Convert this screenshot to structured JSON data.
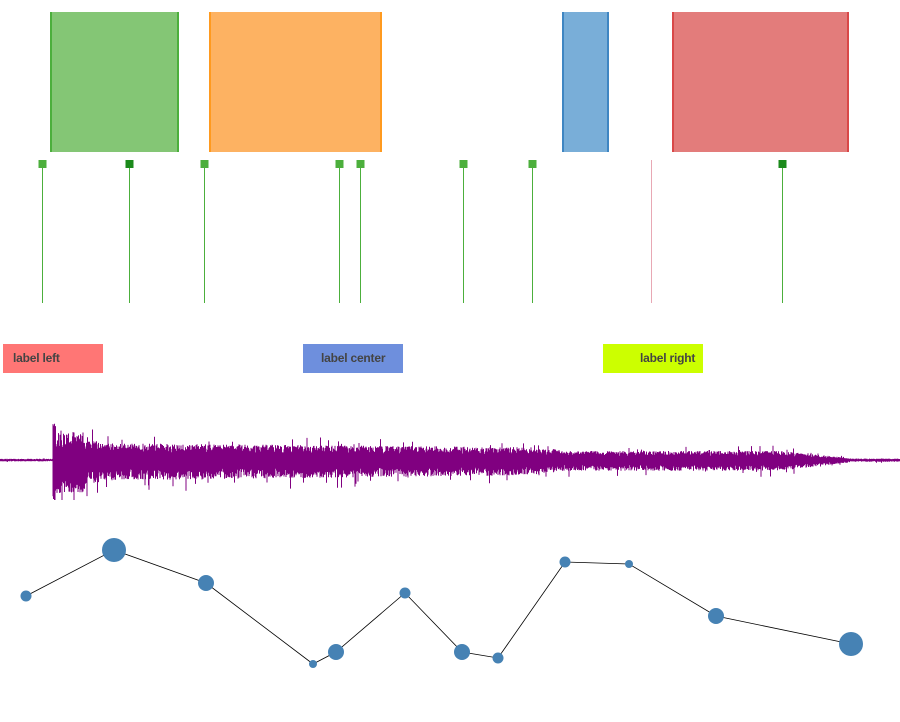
{
  "regions": [
    {
      "name": "green",
      "fill": "#84c675",
      "stroke": "#4caf3c"
    },
    {
      "name": "orange",
      "fill": "#fdb262",
      "stroke": "#ff9a1f"
    },
    {
      "name": "blue",
      "fill": "#79aed8",
      "stroke": "#3f86c2"
    },
    {
      "name": "red",
      "fill": "#e37c7b",
      "stroke": "#d94848"
    }
  ],
  "markers": [
    {
      "handle": "light"
    },
    {
      "handle": "dark"
    },
    {
      "handle": "light"
    },
    {
      "handle": "light"
    },
    {
      "handle": "light"
    },
    {
      "handle": "light"
    },
    {
      "handle": "light"
    },
    {
      "handle": "none"
    },
    {
      "handle": "dark"
    }
  ],
  "marker_colors": {
    "light": "#4caf3c",
    "dark": "#1b8a1b",
    "line": "#4caf3c",
    "pink_line": "#e8a8b4"
  },
  "labels": {
    "left": {
      "text": "label left",
      "bg": "#ff7675"
    },
    "center": {
      "text": "label center",
      "bg": "#6e8fdd"
    },
    "right": {
      "text": "label right",
      "bg": "#ccff00"
    }
  },
  "waveform": {
    "color": "#800080"
  },
  "line_chart": {
    "color": "#4682b4",
    "points": [
      {
        "size": "small"
      },
      {
        "size": "large"
      },
      {
        "size": "medium"
      },
      {
        "size": "tiny"
      },
      {
        "size": "medium"
      },
      {
        "size": "small"
      },
      {
        "size": "medium"
      },
      {
        "size": "small"
      },
      {
        "size": "small"
      },
      {
        "size": "tiny"
      },
      {
        "size": "medium"
      },
      {
        "size": "large"
      }
    ]
  }
}
